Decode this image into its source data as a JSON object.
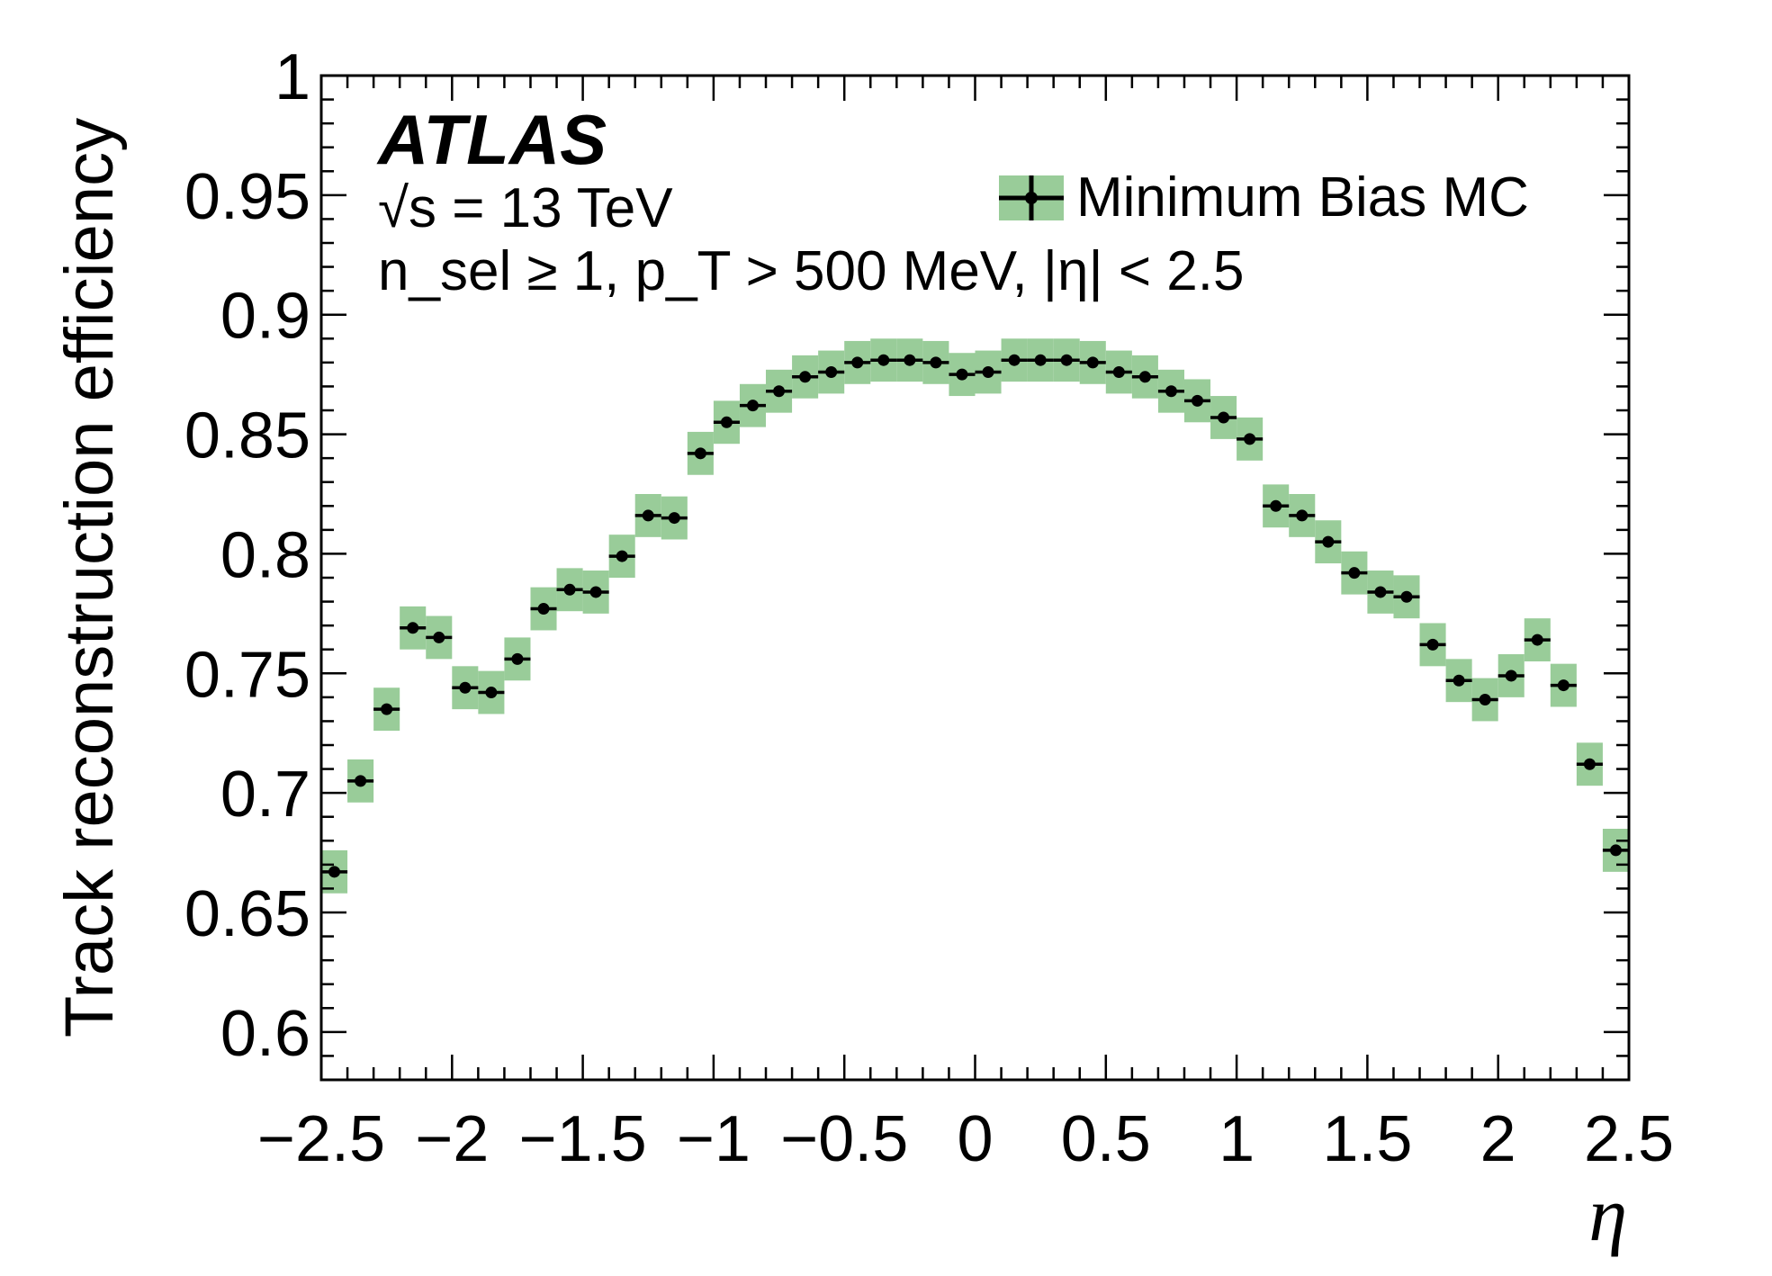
{
  "chart_data": {
    "type": "scatter",
    "title": "",
    "xlabel": "η",
    "ylabel": "Track reconstruction efficiency",
    "xlim": [
      -2.5,
      2.5
    ],
    "ylim": [
      0.58,
      1.0
    ],
    "x_ticks": [
      "−2.5",
      "−2",
      "−1.5",
      "−1",
      "−0.5",
      "0",
      "0.5",
      "1",
      "1.5",
      "2",
      "2.5"
    ],
    "y_ticks": [
      "0.6",
      "0.65",
      "0.7",
      "0.75",
      "0.8",
      "0.85",
      "0.9",
      "0.95",
      "1"
    ],
    "grid": false,
    "legend_position": "top-right",
    "band_color": "#99cc99",
    "marker_color": "#000000",
    "annotations": {
      "experiment": "ATLAS",
      "energy": "√s = 13 TeV",
      "selection": "n_sel ≥ 1, p_T > 500 MeV, |η| < 2.5"
    },
    "series": [
      {
        "name": "Minimum Bias MC",
        "x": [
          -2.45,
          -2.35,
          -2.25,
          -2.15,
          -2.05,
          -1.95,
          -1.85,
          -1.75,
          -1.65,
          -1.55,
          -1.45,
          -1.35,
          -1.25,
          -1.15,
          -1.05,
          -0.95,
          -0.85,
          -0.75,
          -0.65,
          -0.55,
          -0.45,
          -0.35,
          -0.25,
          -0.15,
          -0.05,
          0.05,
          0.15,
          0.25,
          0.35,
          0.45,
          0.55,
          0.65,
          0.75,
          0.85,
          0.95,
          1.05,
          1.15,
          1.25,
          1.35,
          1.45,
          1.55,
          1.65,
          1.75,
          1.85,
          1.95,
          2.05,
          2.15,
          2.25,
          2.35,
          2.45
        ],
        "y": [
          0.667,
          0.705,
          0.735,
          0.769,
          0.765,
          0.744,
          0.742,
          0.756,
          0.777,
          0.785,
          0.784,
          0.799,
          0.816,
          0.815,
          0.842,
          0.855,
          0.862,
          0.868,
          0.874,
          0.876,
          0.88,
          0.881,
          0.881,
          0.88,
          0.875,
          0.876,
          0.881,
          0.881,
          0.881,
          0.88,
          0.876,
          0.874,
          0.868,
          0.864,
          0.857,
          0.848,
          0.82,
          0.816,
          0.805,
          0.792,
          0.784,
          0.782,
          0.762,
          0.747,
          0.739,
          0.749,
          0.764,
          0.745,
          0.712,
          0.676
        ],
        "band_half_height": 0.009
      }
    ]
  }
}
